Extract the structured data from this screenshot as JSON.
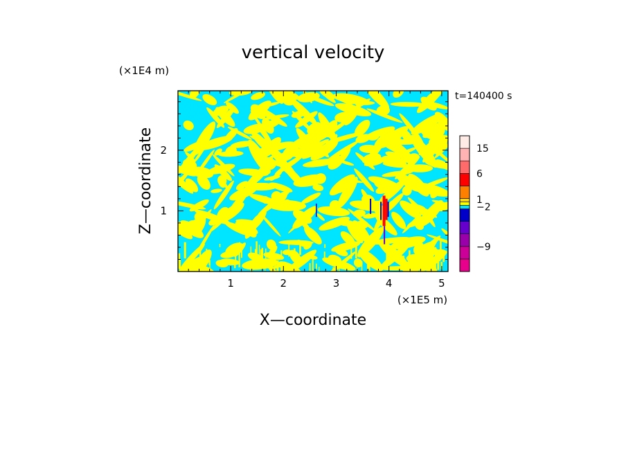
{
  "chart_data": {
    "type": "heatmap",
    "title": "vertical velocity",
    "xlabel": "X—coordinate",
    "ylabel": "Z—coordinate",
    "x_unit": "(×1E5 m)",
    "y_unit": "(×1E4 m)",
    "time_label": "t=140400 s",
    "xlim": [
      0,
      5.12
    ],
    "ylim": [
      0,
      2.98
    ],
    "x_ticks": [
      {
        "value": 1,
        "label": "1"
      },
      {
        "value": 2,
        "label": "2"
      },
      {
        "value": 3,
        "label": "3"
      },
      {
        "value": 4,
        "label": "4"
      },
      {
        "value": 5,
        "label": "5"
      }
    ],
    "y_ticks": [
      {
        "value": 1,
        "label": "1"
      },
      {
        "value": 2,
        "label": "2"
      }
    ],
    "background_color": "#00e5ff",
    "colorbar": {
      "levels": [
        {
          "color": "#e8008c"
        },
        {
          "color": "#cc0099"
        },
        {
          "color": "#9900aa"
        },
        {
          "color": "#6600cc"
        },
        {
          "color": "#0000c8"
        },
        {
          "color": "#00e5ff"
        },
        {
          "color": "#ffff00"
        },
        {
          "color": "#ffd700"
        },
        {
          "color": "#ff7f00"
        },
        {
          "color": "#ff0000"
        },
        {
          "color": "#ff6b6b"
        },
        {
          "color": "#ffb3b3"
        },
        {
          "color": "#ffebe6"
        }
      ],
      "labels": [
        {
          "value": 15,
          "text": "15"
        },
        {
          "value": 6,
          "text": "6"
        },
        {
          "value": 1,
          "text": "1"
        },
        {
          "value": -2,
          "text": "−2"
        },
        {
          "value": -9,
          "text": "−9"
        }
      ]
    }
  }
}
